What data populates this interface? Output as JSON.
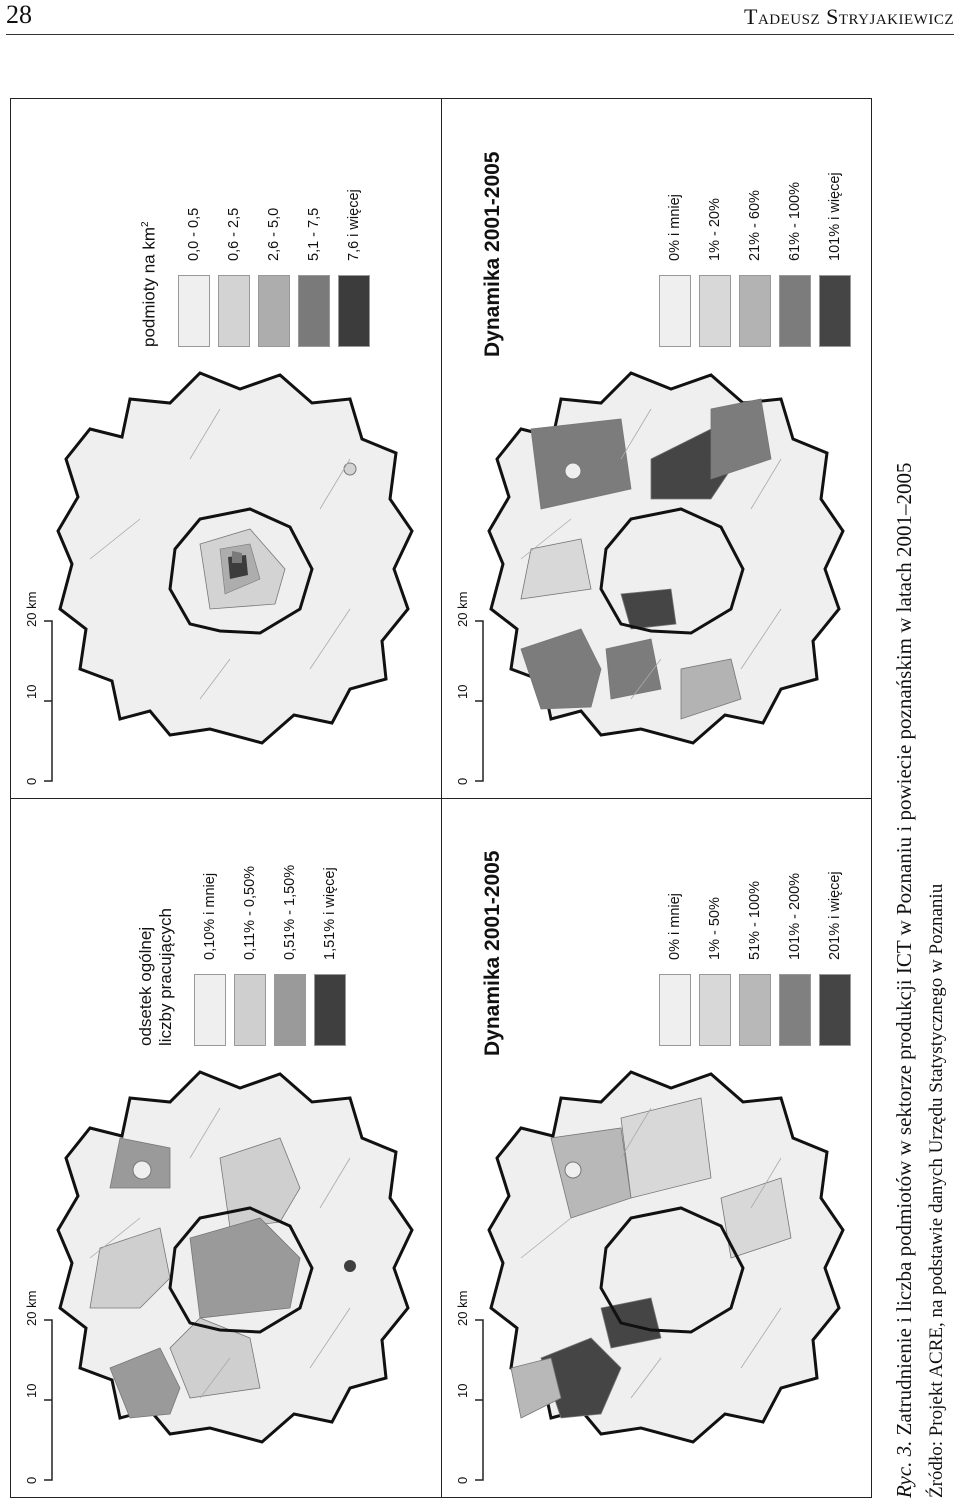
{
  "header": {
    "page_number": "28",
    "author": "Tadeusz Stryjakiewicz"
  },
  "scale_bar": {
    "ticks": [
      "0",
      "10",
      "20 km"
    ]
  },
  "panels": {
    "employment_share": {
      "legend_title_line1": "odsetek ogólnej",
      "legend_title_line2": "liczby pracujących",
      "classes": [
        "0,10% i mniej",
        "0,11% - 0,50%",
        "0,51% - 1,50%",
        "1,51% i więcej"
      ],
      "colors": [
        "#efefef",
        "#cfcfcf",
        "#9a9a9a",
        "#3f3f3f"
      ]
    },
    "density": {
      "legend_title": "podmioty na km",
      "legend_title_sup": "2",
      "classes": [
        "0,0 - 0,5",
        "0,6 - 2,5",
        "2,6 - 5,0",
        "5,1 - 7,5",
        "7,6 i więcej"
      ],
      "colors": [
        "#efefef",
        "#d3d3d3",
        "#adadad",
        "#7a7a7a",
        "#3c3c3c"
      ]
    },
    "employment_dynamics": {
      "title": "Dynamika 2001-2005",
      "classes": [
        "0% i mniej",
        "1% - 50%",
        "51% - 100%",
        "101% - 200%",
        "201% i więcej"
      ],
      "colors": [
        "#efefef",
        "#d8d8d8",
        "#b8b8b8",
        "#808080",
        "#454545"
      ]
    },
    "entities_dynamics": {
      "title": "Dynamika 2001-2005",
      "classes": [
        "0% i mniej",
        "1% - 20%",
        "21% - 60%",
        "61% - 100%",
        "101% i więcej"
      ],
      "colors": [
        "#efefef",
        "#d8d8d8",
        "#b3b3b3",
        "#7c7c7c",
        "#454545"
      ]
    }
  },
  "caption": {
    "label": "Ryc. 3.",
    "text": "Zatrudnienie i liczba podmiotów w sektorze produkcji ICT w Poznaniu i powiecie poznańskim w latach 2001–2005",
    "source": "Źródło: Projekt ACRE, na podstawie danych Urzędu Statystycznego w Poznaniu"
  }
}
